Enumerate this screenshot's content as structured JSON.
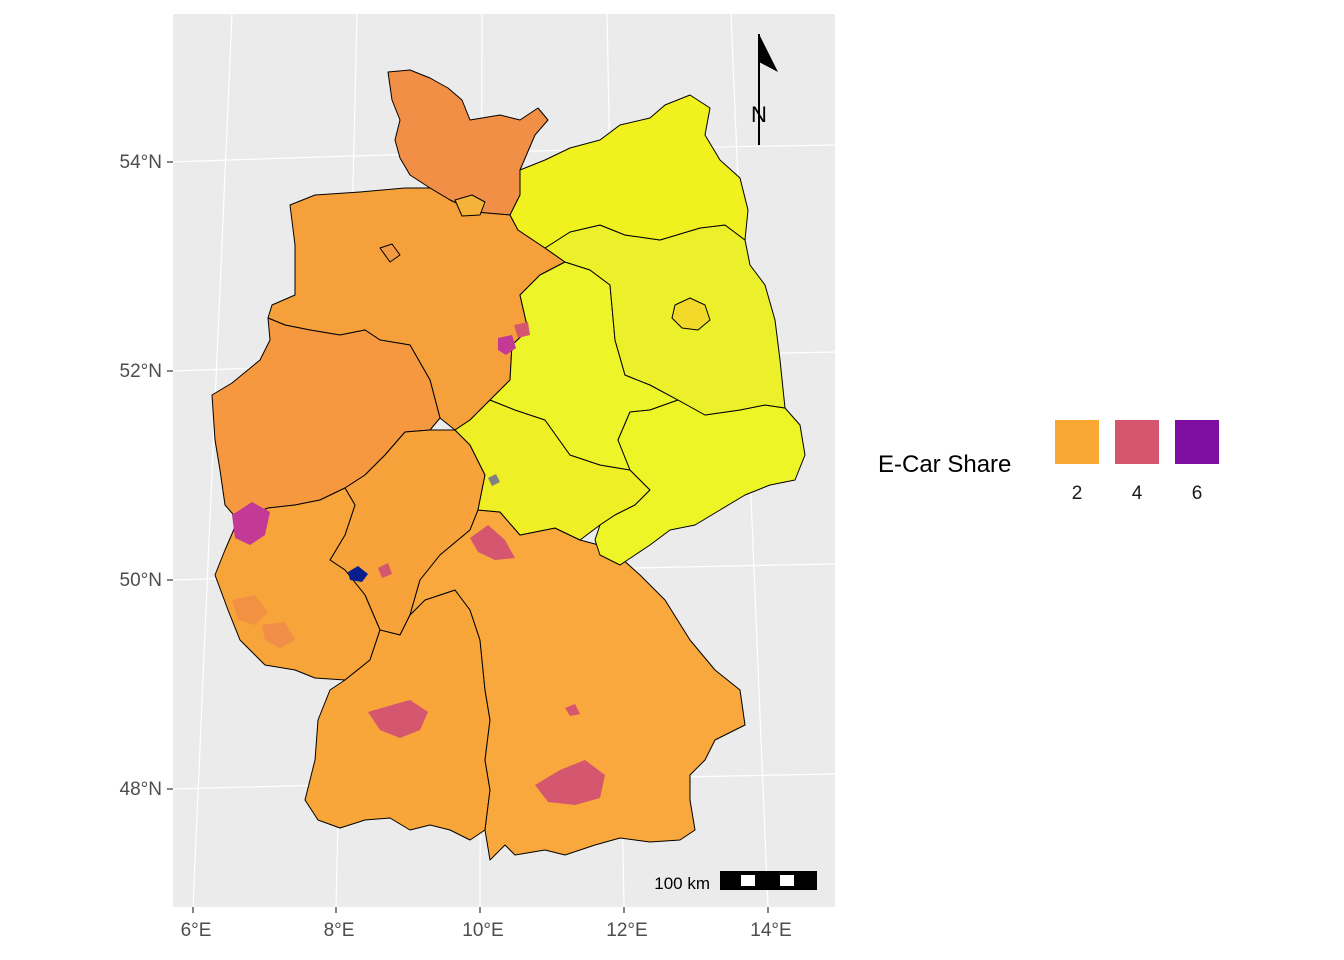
{
  "map": {
    "latitude_labels": [
      "54°N",
      "52°N",
      "50°N",
      "48°N"
    ],
    "longitude_labels": [
      "6°E",
      "8°E",
      "10°E",
      "12°E",
      "14°E"
    ],
    "north_arrow_label": "N",
    "scale_bar_label": "100 km"
  },
  "legend": {
    "title": "E-Car Share",
    "items": [
      {
        "label": "2",
        "value": 2,
        "color": "#f9a833"
      },
      {
        "label": "4",
        "value": 4,
        "color": "#d4566f"
      },
      {
        "label": "6",
        "value": 6,
        "color": "#7e0fa2"
      }
    ]
  },
  "colors": {
    "panel_background": "#ebebeb",
    "grid": "#ffffff",
    "west_fill": "#f79a3f",
    "south_fill": "#f8a83c",
    "east_fill": "#f0f524",
    "high_share": "#c33a96",
    "highest_share": "#0a1f8f",
    "missing": "#808080"
  }
}
